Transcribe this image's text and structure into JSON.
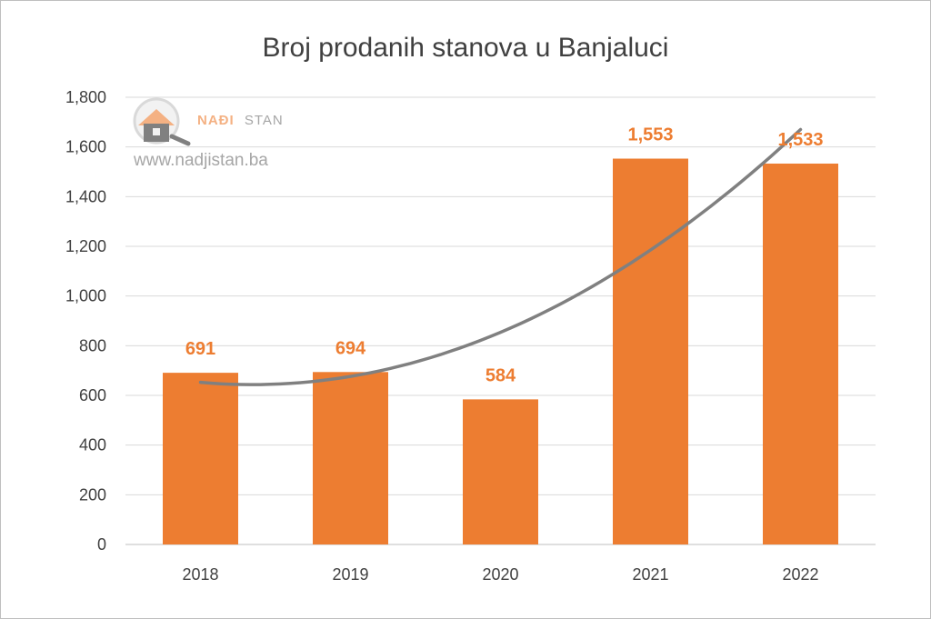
{
  "chart_data": {
    "type": "bar",
    "title": "Broj prodanih stanova u Banjaluci",
    "categories": [
      "2018",
      "2019",
      "2020",
      "2021",
      "2022"
    ],
    "values": [
      691,
      694,
      584,
      1553,
      1533
    ],
    "data_labels": [
      "691",
      "694",
      "584",
      "1,553",
      "1,533"
    ],
    "ylim": [
      0,
      1800
    ],
    "y_ticks": [
      0,
      200,
      400,
      600,
      800,
      1000,
      1200,
      1400,
      1600,
      1800
    ],
    "y_tick_labels": [
      "0",
      "200",
      "400",
      "600",
      "800",
      "1,000",
      "1,200",
      "1,400",
      "1,600",
      "1,800"
    ],
    "grid": true,
    "bar_color": "#ED7D31",
    "label_color": "#ED7D31",
    "trendline": {
      "type": "polynomial",
      "color": "#808080",
      "x": [
        2018,
        2019,
        2020,
        2021,
        2022
      ],
      "y": [
        648,
        690,
        840,
        1190,
        1670
      ]
    }
  },
  "watermark": {
    "brand_prefix": "NAĐI",
    "brand_suffix": "STAN",
    "url": "www.nadjistan.ba",
    "icon": "house-magnifier-icon",
    "brand_color": "#F4B183",
    "suffix_color": "#a6a6a6"
  }
}
